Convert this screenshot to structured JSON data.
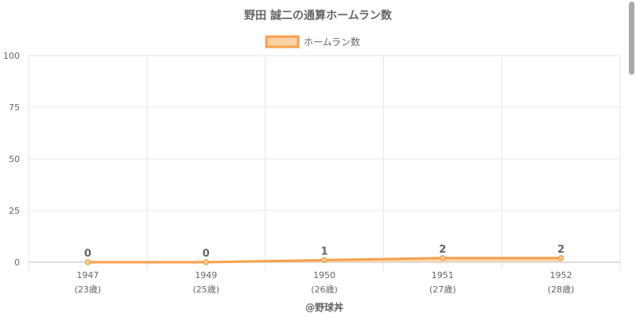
{
  "chart_data": {
    "type": "area",
    "title": "野田 誠二の通算ホームラン数",
    "legend": {
      "position": "top",
      "label": "ホームラン数"
    },
    "categories": [
      "1947",
      "1949",
      "1950",
      "1951",
      "1952"
    ],
    "sub_labels": [
      "(23歳)",
      "(25歳)",
      "(26歳)",
      "(27歳)",
      "(28歳)"
    ],
    "series": [
      {
        "name": "ホームラン数",
        "values": [
          0,
          0,
          1,
          2,
          2
        ]
      }
    ],
    "data_labels": [
      "0",
      "0",
      "1",
      "2",
      "2"
    ],
    "ylim": [
      0,
      100
    ],
    "yticks": [
      "0",
      "25",
      "50",
      "75",
      "100"
    ],
    "grid": true,
    "colors": {
      "line": "#f7a04a",
      "fill": "#fbd0a3",
      "point": "#f7a04a",
      "grid": "#e5e5e5",
      "text": "#666666"
    },
    "credit": "@野球丼"
  }
}
